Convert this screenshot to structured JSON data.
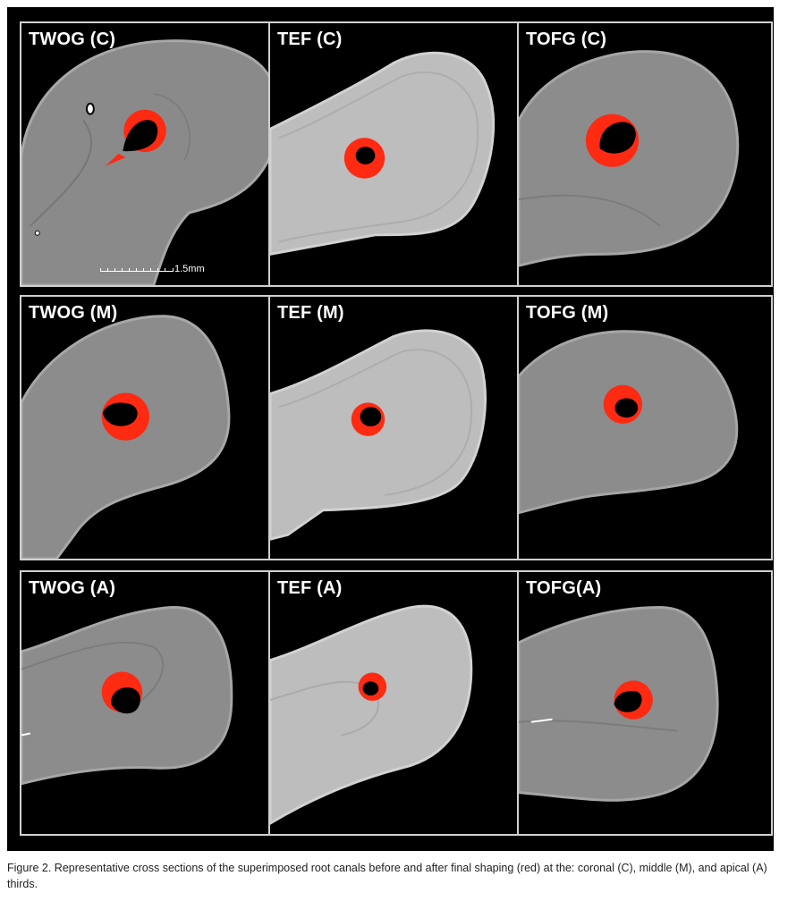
{
  "panels": [
    {
      "label": "TWOG (C)"
    },
    {
      "label": "TEF (C)"
    },
    {
      "label": "TOFG (C)"
    },
    {
      "label": "TWOG (M)"
    },
    {
      "label": "TEF (M)"
    },
    {
      "label": "TOFG (M)"
    },
    {
      "label": "TWOG (A)"
    },
    {
      "label": "TEF (A)"
    },
    {
      "label": "TOFG(A)"
    }
  ],
  "scale_bar": {
    "label": "1.5mm"
  },
  "caption": "Figure 2. Representative cross sections of the superimposed root canals before and after final shaping (red) at the: coronal (C), middle (M), and apical (A) thirds.",
  "colors": {
    "dentin_dark": "#8c8c8c",
    "dentin_light": "#bdbdbd",
    "shaped_canal": "#ff2a12",
    "original_canal": "#000000",
    "frame": "#d0d0d0"
  }
}
